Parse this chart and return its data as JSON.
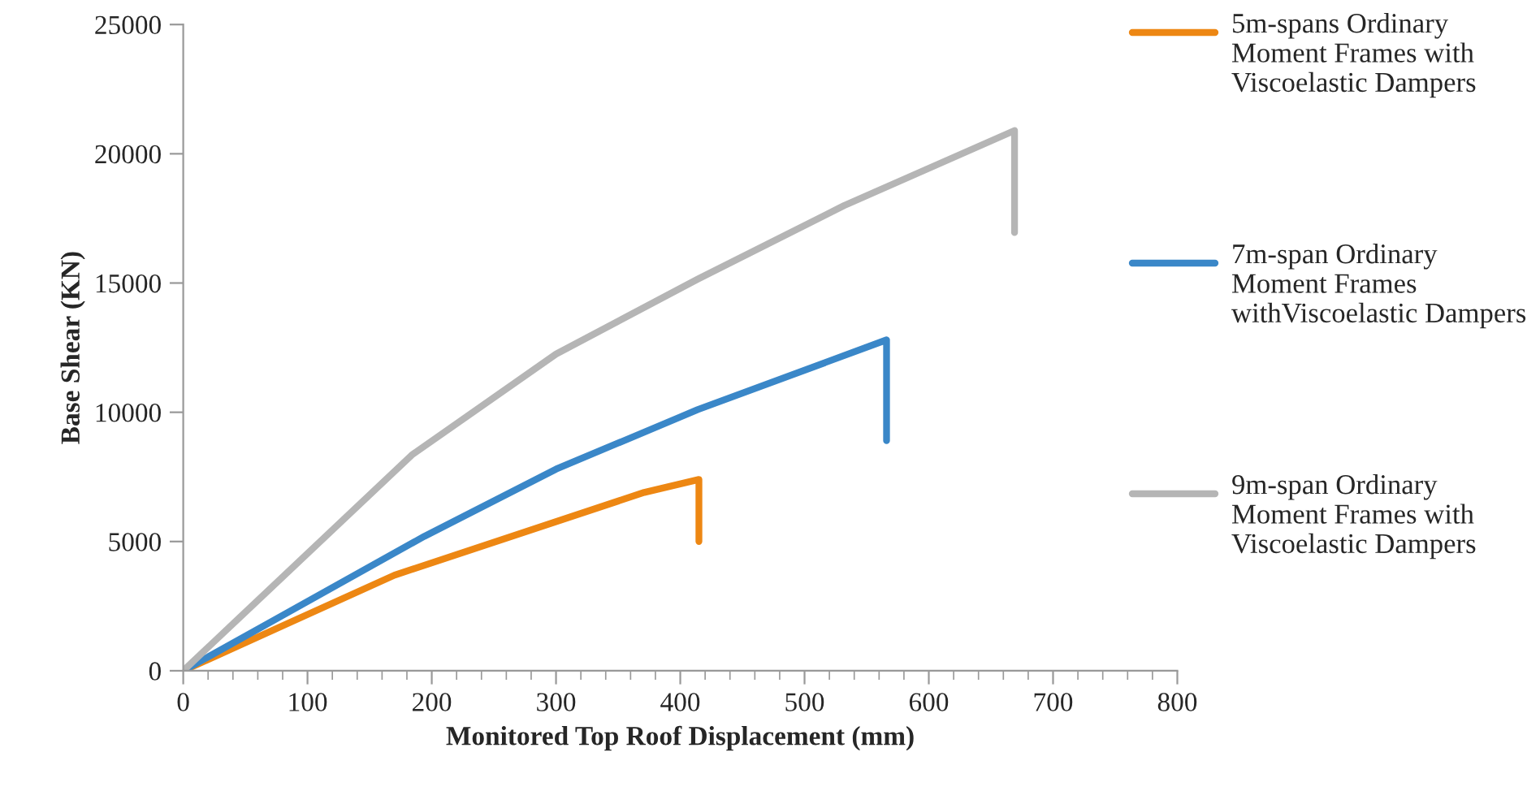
{
  "chart_data": {
    "type": "line",
    "xlabel": "Monitored Top Roof Displacement (mm)",
    "ylabel": "Base Shear (KN)",
    "xlim": [
      0,
      800
    ],
    "xticks": [
      0,
      100,
      200,
      300,
      400,
      500,
      600,
      700,
      800
    ],
    "ylim": [
      0,
      25000
    ],
    "yticks": [
      0,
      5000,
      10000,
      15000,
      20000,
      25000
    ],
    "grid": false,
    "legend": "right",
    "marker": "none",
    "line_style": "solid",
    "series": [
      {
        "name": "5m-spans Ordinary Moment Frames with Viscoelastic Dampers",
        "color": "#ed8713",
        "x": [
          0,
          170,
          371,
          415,
          415
        ],
        "values": [
          0,
          3700,
          6900,
          7400,
          5000
        ]
      },
      {
        "name": "7m-span Ordinary Moment Frames withViscoelastic Dampers",
        "color": "#3a87c8",
        "x": [
          0,
          194,
          300,
          414,
          566,
          566
        ],
        "values": [
          0,
          5200,
          7800,
          10100,
          12800,
          8900
        ]
      },
      {
        "name": "9m-span Ordinary Moment Frames with Viscoelastic Dampers",
        "color": "#b5b5b5",
        "x": [
          0,
          184,
          300,
          414,
          532,
          669,
          669
        ],
        "values": [
          0,
          8350,
          12250,
          15150,
          18000,
          20900,
          16950
        ]
      }
    ]
  }
}
